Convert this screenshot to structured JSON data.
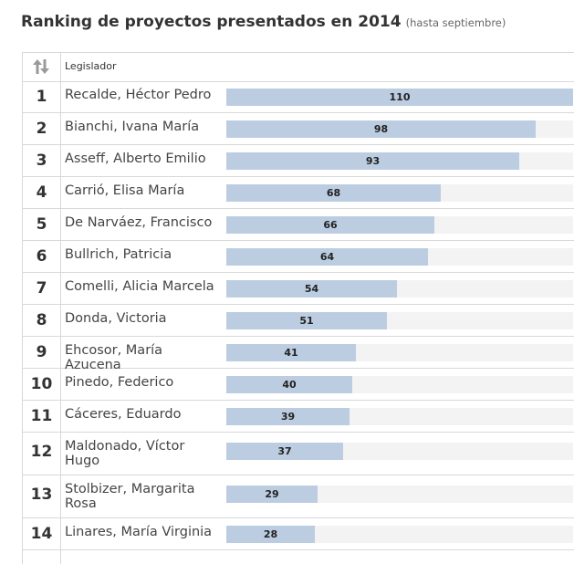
{
  "header": {
    "title": "Ranking de proyectos presentados en 2014",
    "subtitle": "(hasta septiembre)"
  },
  "table": {
    "column_label": "Legislador",
    "sort_icon": "sort-arrows-icon"
  },
  "colors": {
    "bar": "#bccde2",
    "track": "#f3f3f3",
    "grid": "#d8d8d8"
  },
  "chart_data": {
    "type": "bar",
    "orientation": "horizontal",
    "title": "Ranking de proyectos presentados en 2014",
    "subtitle": "(hasta septiembre)",
    "xlim": [
      0,
      110
    ],
    "grid": false,
    "ranks": [
      "1",
      "2",
      "3",
      "4",
      "5",
      "6",
      "7",
      "8",
      "9",
      "10",
      "11",
      "12",
      "13",
      "14"
    ],
    "categories": [
      "Recalde, Héctor Pedro",
      "Bianchi, Ivana María",
      "Asseff, Alberto Emilio",
      "Carrió, Elisa María",
      "De Narváez, Francisco",
      "Bullrich, Patricia",
      "Comelli, Alicia Marcela",
      "Donda, Victoria",
      "Ehcosor, María Azucena",
      "Pinedo, Federico",
      "Cáceres, Eduardo",
      "Maldonado, Víctor Hugo",
      "Stolbizer, Margarita Rosa",
      "Linares, María Virginia"
    ],
    "values": [
      110,
      98,
      93,
      68,
      66,
      64,
      54,
      51,
      41,
      40,
      39,
      37,
      29,
      28
    ]
  }
}
